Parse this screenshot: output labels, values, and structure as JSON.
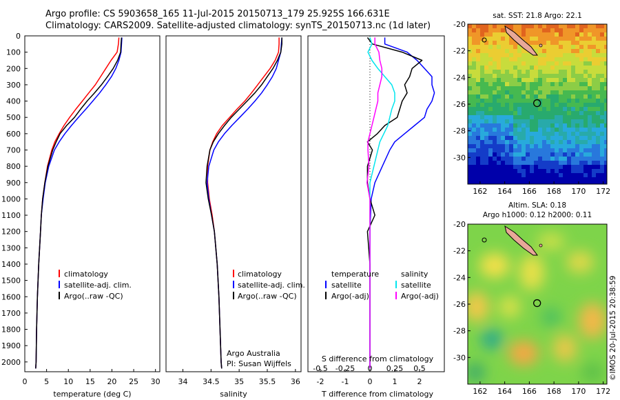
{
  "header": {
    "line1": "Argo profile: CS 5903658_165 11-Jul-2015 20150713_179 25.925S 166.631E",
    "line2": "Climatology: CARS2009. Satellite-adjusted climatology: synTS_20150713.nc (1d later)"
  },
  "colors": {
    "climatology": "#ff0000",
    "satellite": "#0000ff",
    "argo": "#000000",
    "salinity_sat": "#00e5ee",
    "salinity_argo": "#ff00ff"
  },
  "chart_data": [
    {
      "id": "temperature",
      "type": "line",
      "xlabel": "temperature (deg C)",
      "ylabel": "",
      "xlim": [
        0,
        31
      ],
      "ylim": [
        2060,
        0
      ],
      "xticks": [
        0,
        5,
        10,
        15,
        20,
        25,
        30
      ],
      "yticks": [
        0,
        100,
        200,
        300,
        400,
        500,
        600,
        700,
        800,
        900,
        1000,
        1100,
        1200,
        1300,
        1400,
        1500,
        1600,
        1700,
        1800,
        1900,
        2000
      ],
      "legend": {
        "position": "bottom-center",
        "entries": [
          "climatology",
          "satellite-adj. clim.",
          "Argo(..raw -QC)"
        ]
      },
      "series": [
        {
          "name": "climatology",
          "color": "#ff0000",
          "depth": [
            10,
            50,
            100,
            150,
            200,
            250,
            300,
            350,
            400,
            450,
            500,
            550,
            600,
            650,
            700,
            800,
            900,
            1000,
            1100,
            1200,
            1400,
            1600,
            1800,
            2000,
            2040
          ],
          "values": [
            21.6,
            21.5,
            21.2,
            19.8,
            18.6,
            17.4,
            16.2,
            14.7,
            13.2,
            11.7,
            10.3,
            9.0,
            7.9,
            6.9,
            6.2,
            5.2,
            4.6,
            4.1,
            3.8,
            3.6,
            3.2,
            2.9,
            2.7,
            2.6,
            2.5
          ]
        },
        {
          "name": "satellite-adj. clim.",
          "color": "#0000ff",
          "depth": [
            10,
            50,
            100,
            150,
            200,
            250,
            300,
            350,
            400,
            450,
            500,
            550,
            600,
            650,
            700,
            800,
            900,
            1000,
            1100,
            1200,
            1400,
            1600,
            1800,
            2000,
            2040
          ],
          "values": [
            22.3,
            22.2,
            22.1,
            21.6,
            20.9,
            19.9,
            18.6,
            17.2,
            15.6,
            14.0,
            12.3,
            10.7,
            9.2,
            7.9,
            6.8,
            5.5,
            4.7,
            4.2,
            3.8,
            3.6,
            3.2,
            2.9,
            2.7,
            2.6,
            2.5
          ]
        },
        {
          "name": "Argo(..raw -QC)",
          "color": "#000000",
          "depth": [
            10,
            50,
            100,
            150,
            200,
            250,
            300,
            350,
            400,
            450,
            500,
            550,
            600,
            650,
            700,
            800,
            900,
            1000,
            1100,
            1200,
            1400,
            1600,
            1800,
            2000,
            2040
          ],
          "values": [
            22.2,
            22.1,
            22.0,
            21.3,
            20.3,
            19.0,
            17.6,
            16.0,
            14.3,
            12.8,
            11.4,
            9.6,
            8.1,
            7.2,
            6.4,
            5.3,
            4.6,
            4.1,
            3.8,
            3.6,
            3.2,
            2.9,
            2.7,
            2.6,
            2.5
          ]
        }
      ]
    },
    {
      "id": "salinity",
      "type": "line",
      "xlabel": "salinity",
      "xlim": [
        33.7,
        36.1
      ],
      "ylim": [
        2060,
        0
      ],
      "xticks": [
        34,
        34.5,
        35,
        35.5,
        36
      ],
      "legend": {
        "position": "bottom-center",
        "entries": [
          "climatology",
          "satellite-adj. clim.",
          "Argo(..raw -QC)"
        ]
      },
      "annotation": {
        "line1": "Argo Australia",
        "line2": "PI: Susan Wijffels"
      },
      "series": [
        {
          "name": "climatology",
          "color": "#ff0000",
          "depth": [
            10,
            50,
            100,
            150,
            200,
            250,
            300,
            350,
            400,
            450,
            500,
            550,
            600,
            650,
            700,
            800,
            900,
            1000,
            1100,
            1200,
            1400,
            1600,
            1800,
            2000,
            2040
          ],
          "values": [
            35.71,
            35.71,
            35.7,
            35.64,
            35.55,
            35.44,
            35.33,
            35.22,
            35.1,
            34.96,
            34.83,
            34.7,
            34.6,
            34.53,
            34.48,
            34.44,
            34.44,
            34.47,
            34.52,
            34.56,
            34.61,
            34.64,
            34.66,
            34.68,
            34.69
          ]
        },
        {
          "name": "satellite-adj. clim.",
          "color": "#0000ff",
          "depth": [
            10,
            50,
            100,
            150,
            200,
            250,
            300,
            350,
            400,
            450,
            500,
            550,
            600,
            650,
            700,
            800,
            900,
            1000,
            1100,
            1200,
            1400,
            1600,
            1800,
            2000,
            2040
          ],
          "values": [
            35.76,
            35.75,
            35.74,
            35.7,
            35.66,
            35.59,
            35.5,
            35.4,
            35.28,
            35.15,
            35.01,
            34.87,
            34.74,
            34.63,
            34.55,
            34.46,
            34.43,
            34.46,
            34.51,
            34.56,
            34.61,
            34.64,
            34.66,
            34.68,
            34.69
          ]
        },
        {
          "name": "Argo(..raw -QC)",
          "color": "#000000",
          "depth": [
            10,
            50,
            100,
            150,
            200,
            250,
            300,
            350,
            400,
            450,
            500,
            550,
            600,
            650,
            700,
            800,
            900,
            1000,
            1100,
            1200,
            1400,
            1600,
            1800,
            2000,
            2040
          ],
          "values": [
            35.76,
            35.76,
            35.74,
            35.68,
            35.6,
            35.5,
            35.4,
            35.28,
            35.14,
            35.0,
            34.86,
            34.74,
            34.63,
            34.54,
            34.48,
            34.43,
            34.41,
            34.45,
            34.51,
            34.56,
            34.61,
            34.64,
            34.66,
            34.68,
            34.69
          ]
        }
      ]
    },
    {
      "id": "difference",
      "type": "line",
      "xlabel": "T difference from climatology",
      "xlabel_top": "S difference from climatology",
      "xlim": [
        -2.5,
        3.0
      ],
      "ylim": [
        2060,
        0
      ],
      "xticks": [
        -2,
        -1,
        0,
        1,
        2
      ],
      "top_ticks": [
        -0.5,
        -0.25,
        0,
        0.25,
        0.5
      ],
      "legend": {
        "position": "bottom-center",
        "temperature_title": "temperature",
        "salinity_title": "salinity",
        "entries": [
          "satellite",
          "Argo(-adj)",
          "satellite",
          "Argo(-adj)"
        ]
      },
      "series": [
        {
          "name": "temperature satellite",
          "color": "#0000ff",
          "depth": [
            10,
            50,
            100,
            150,
            200,
            250,
            300,
            350,
            400,
            450,
            500,
            550,
            600,
            650,
            700,
            800,
            900,
            1000,
            1200,
            1400,
            1600,
            1800,
            2000,
            2040
          ],
          "values": [
            0.6,
            0.6,
            1.5,
            1.9,
            2.2,
            2.5,
            2.5,
            2.6,
            2.5,
            2.3,
            2.2,
            1.8,
            1.4,
            1.0,
            0.8,
            0.5,
            0.2,
            0.05,
            0.0,
            0.0,
            0.0,
            0.0,
            0.0,
            0.0
          ]
        },
        {
          "name": "temperature Argo(-adj)",
          "color": "#000000",
          "depth": [
            10,
            50,
            100,
            150,
            200,
            250,
            300,
            350,
            400,
            450,
            500,
            550,
            600,
            650,
            700,
            800,
            900,
            1000,
            1100,
            1200,
            1400,
            1600,
            1800,
            2000,
            2040
          ],
          "values": [
            -0.1,
            0.1,
            1.3,
            2.1,
            1.7,
            1.6,
            1.4,
            1.5,
            1.3,
            1.2,
            1.1,
            0.6,
            0.3,
            -0.1,
            0.1,
            -0.1,
            -0.1,
            0.0,
            0.2,
            -0.1,
            0.0,
            0.0,
            0.0,
            0.0,
            0.0
          ]
        },
        {
          "name": "salinity satellite",
          "color": "#00e5ee",
          "depth": [
            10,
            50,
            100,
            150,
            200,
            250,
            300,
            350,
            400,
            450,
            500,
            550,
            600,
            650,
            700,
            800,
            900,
            1000,
            1200,
            1400,
            1600,
            1800,
            2000,
            2040
          ],
          "values": [
            0.0,
            0.02,
            -0.02,
            0.02,
            0.08,
            0.15,
            0.22,
            0.25,
            0.25,
            0.22,
            0.2,
            0.18,
            0.14,
            0.1,
            0.08,
            0.04,
            0.0,
            0.0,
            0.0,
            0.0,
            0.0,
            0.0,
            0.0,
            0.0
          ]
        },
        {
          "name": "salinity Argo(-adj)",
          "color": "#ff00ff",
          "depth": [
            10,
            50,
            100,
            150,
            200,
            250,
            300,
            350,
            400,
            450,
            500,
            550,
            600,
            650,
            700,
            800,
            900,
            1000,
            1200,
            1400,
            1600,
            1800,
            2000,
            2040
          ],
          "values": [
            0.05,
            0.05,
            0.09,
            0.1,
            0.12,
            0.12,
            0.1,
            0.08,
            0.08,
            0.06,
            0.04,
            0.02,
            0.0,
            -0.02,
            -0.02,
            -0.01,
            -0.03,
            0.0,
            0.0,
            0.0,
            0.0,
            0.0,
            0.0,
            0.0
          ]
        }
      ]
    },
    {
      "id": "sst_map",
      "type": "heatmap",
      "title": "sat. SST: 21.8 Argo: 22.1",
      "xlim": [
        161,
        172.3
      ],
      "ylim": [
        -32,
        -20
      ],
      "xticks": [
        162,
        164,
        166,
        168,
        170,
        172
      ],
      "yticks": [
        -20,
        -22,
        -24,
        -26,
        -28,
        -30
      ],
      "marker": {
        "lon": 166.631,
        "lat": -25.925
      }
    },
    {
      "id": "sla_map",
      "type": "heatmap",
      "title": "Altim. SLA: 0.18",
      "subtitle": "Argo h1000: 0.12 h2000: 0.11",
      "xlim": [
        161,
        172.3
      ],
      "ylim": [
        -32,
        -20
      ],
      "xticks": [
        162,
        164,
        166,
        168,
        170,
        172
      ],
      "yticks": [
        -20,
        -22,
        -24,
        -26,
        -28,
        -30
      ],
      "marker": {
        "lon": 166.631,
        "lat": -25.925
      }
    }
  ],
  "footer": {
    "credit": "©IMOS 20-Jul-2015 20:38:59"
  }
}
